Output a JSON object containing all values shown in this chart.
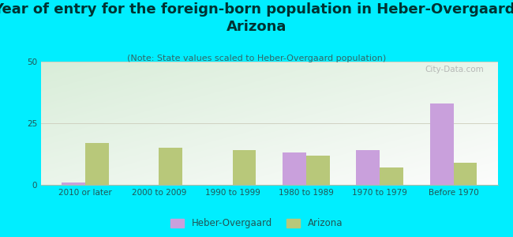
{
  "title": "Year of entry for the foreign-born population in Heber-Overgaard,\nArizona",
  "subtitle": "(Note: State values scaled to Heber-Overgaard population)",
  "categories": [
    "2010 or later",
    "2000 to 2009",
    "1990 to 1999",
    "1980 to 1989",
    "1970 to 1979",
    "Before 1970"
  ],
  "heber_values": [
    1,
    0,
    0,
    13,
    14,
    33
  ],
  "arizona_values": [
    17,
    15,
    14,
    12,
    7,
    9
  ],
  "heber_color": "#c9a0dc",
  "arizona_color": "#b8c87a",
  "background_color": "#00eeff",
  "ylim": [
    0,
    50
  ],
  "yticks": [
    0,
    25,
    50
  ],
  "title_fontsize": 13,
  "subtitle_fontsize": 8,
  "tick_fontsize": 7.5,
  "legend_fontsize": 8.5,
  "bar_width": 0.32,
  "watermark": "City-Data.com",
  "title_color": "#003333",
  "subtitle_color": "#336666",
  "tick_color": "#225555"
}
